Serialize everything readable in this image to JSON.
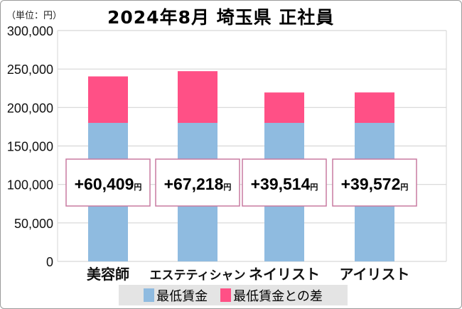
{
  "chart_data": {
    "type": "bar",
    "stacked": true,
    "title": "2024年8月 埼玉県 正社員",
    "unit_label": "（単位：円）",
    "categories": [
      "美容師",
      "エステティシャン",
      "ネイリスト",
      "アイリスト"
    ],
    "series": [
      {
        "name": "最低賃金",
        "values": [
          180000,
          180000,
          180000,
          180000
        ],
        "color": "#8fbbe0"
      },
      {
        "name": "最低賃金との差",
        "values": [
          60409,
          67218,
          39514,
          39572
        ],
        "color": "#ff5086"
      }
    ],
    "data_labels": [
      "+60,409",
      "+67,218",
      "+39,514",
      "+39,572"
    ],
    "data_label_suffix": "円",
    "ylim": [
      0,
      300000
    ],
    "yticks": [
      "0",
      "50,000",
      "100,000",
      "150,000",
      "200,000",
      "250,000",
      "300,000"
    ],
    "grid": true,
    "legend": "bottom"
  }
}
